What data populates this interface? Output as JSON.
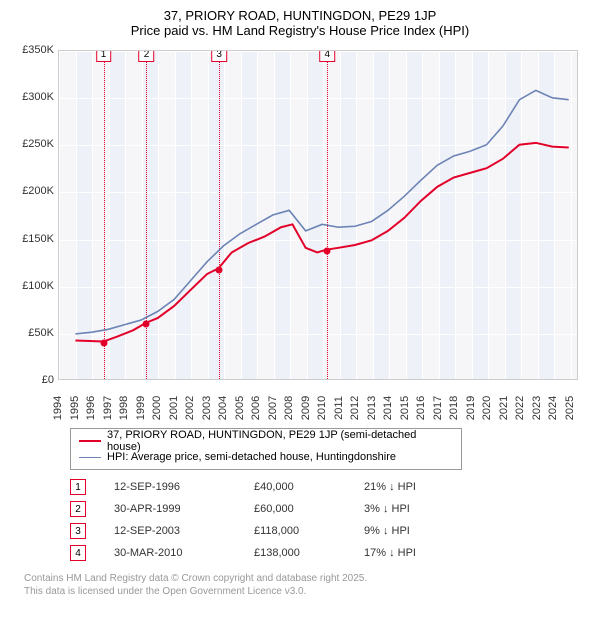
{
  "title": "37, PRIORY ROAD, HUNTINGDON, PE29 1JP",
  "subtitle": "Price paid vs. HM Land Registry's House Price Index (HPI)",
  "chart": {
    "type": "line",
    "x_min": 1994,
    "x_max": 2025.5,
    "y_min": 0,
    "y_max": 350000,
    "y_ticks": [
      0,
      50000,
      100000,
      150000,
      200000,
      250000,
      300000,
      350000
    ],
    "y_tick_labels": [
      "£0",
      "£50K",
      "£100K",
      "£150K",
      "£200K",
      "£250K",
      "£300K",
      "£350K"
    ],
    "x_ticks": [
      1994,
      1995,
      1996,
      1997,
      1998,
      1999,
      2000,
      2001,
      2002,
      2003,
      2004,
      2005,
      2006,
      2007,
      2008,
      2009,
      2010,
      2011,
      2012,
      2013,
      2014,
      2015,
      2016,
      2017,
      2018,
      2019,
      2020,
      2021,
      2022,
      2023,
      2024,
      2025
    ],
    "background_color": "#f6f6f8",
    "grid_color": "#ffffff",
    "band_color": "#eef1f7",
    "bands": [
      [
        1995,
        1996
      ],
      [
        1997,
        1998
      ],
      [
        1999,
        2000
      ],
      [
        2001,
        2002
      ],
      [
        2003,
        2004
      ],
      [
        2005,
        2006
      ],
      [
        2007,
        2008
      ],
      [
        2009,
        2010
      ],
      [
        2011,
        2012
      ],
      [
        2013,
        2014
      ],
      [
        2015,
        2016
      ],
      [
        2017,
        2018
      ],
      [
        2019,
        2020
      ],
      [
        2021,
        2022
      ],
      [
        2023,
        2024
      ]
    ],
    "series": [
      {
        "name": "price_paid",
        "color": "#e2002a",
        "width": 2,
        "points": [
          [
            1995.0,
            41000
          ],
          [
            1996.7,
            40000
          ],
          [
            1997.5,
            45000
          ],
          [
            1998.5,
            52000
          ],
          [
            1999.3,
            60000
          ],
          [
            2000.0,
            65000
          ],
          [
            2001.0,
            78000
          ],
          [
            2002.0,
            95000
          ],
          [
            2003.0,
            112000
          ],
          [
            2003.7,
            118000
          ],
          [
            2004.5,
            135000
          ],
          [
            2005.5,
            145000
          ],
          [
            2006.5,
            152000
          ],
          [
            2007.5,
            162000
          ],
          [
            2008.2,
            165000
          ],
          [
            2009.0,
            140000
          ],
          [
            2009.7,
            135000
          ],
          [
            2010.25,
            138000
          ],
          [
            2011.0,
            140000
          ],
          [
            2012.0,
            143000
          ],
          [
            2013.0,
            148000
          ],
          [
            2014.0,
            158000
          ],
          [
            2015.0,
            172000
          ],
          [
            2016.0,
            190000
          ],
          [
            2017.0,
            205000
          ],
          [
            2018.0,
            215000
          ],
          [
            2019.0,
            220000
          ],
          [
            2020.0,
            225000
          ],
          [
            2021.0,
            235000
          ],
          [
            2022.0,
            250000
          ],
          [
            2023.0,
            252000
          ],
          [
            2024.0,
            248000
          ],
          [
            2025.0,
            247000
          ]
        ],
        "markers": [
          [
            1996.7,
            40000
          ],
          [
            1999.3,
            60000
          ],
          [
            2003.7,
            118000
          ],
          [
            2010.25,
            138000
          ]
        ]
      },
      {
        "name": "hpi",
        "color": "#6c83b5",
        "width": 1.6,
        "points": [
          [
            1995.0,
            48000
          ],
          [
            1996.0,
            50000
          ],
          [
            1997.0,
            53000
          ],
          [
            1998.0,
            58000
          ],
          [
            1999.0,
            63000
          ],
          [
            2000.0,
            72000
          ],
          [
            2001.0,
            85000
          ],
          [
            2002.0,
            105000
          ],
          [
            2003.0,
            125000
          ],
          [
            2004.0,
            142000
          ],
          [
            2005.0,
            155000
          ],
          [
            2006.0,
            165000
          ],
          [
            2007.0,
            175000
          ],
          [
            2008.0,
            180000
          ],
          [
            2009.0,
            158000
          ],
          [
            2010.0,
            165000
          ],
          [
            2011.0,
            162000
          ],
          [
            2012.0,
            163000
          ],
          [
            2013.0,
            168000
          ],
          [
            2014.0,
            180000
          ],
          [
            2015.0,
            195000
          ],
          [
            2016.0,
            212000
          ],
          [
            2017.0,
            228000
          ],
          [
            2018.0,
            238000
          ],
          [
            2019.0,
            243000
          ],
          [
            2020.0,
            250000
          ],
          [
            2021.0,
            270000
          ],
          [
            2022.0,
            298000
          ],
          [
            2023.0,
            308000
          ],
          [
            2024.0,
            300000
          ],
          [
            2025.0,
            298000
          ]
        ]
      }
    ],
    "sale_markers": [
      {
        "n": "1",
        "x": 1996.7,
        "color": "#e2002a"
      },
      {
        "n": "2",
        "x": 1999.3,
        "color": "#e2002a"
      },
      {
        "n": "3",
        "x": 2003.7,
        "color": "#e2002a"
      },
      {
        "n": "4",
        "x": 2010.25,
        "color": "#e2002a"
      }
    ]
  },
  "legend": {
    "items": [
      {
        "label": "37, PRIORY ROAD, HUNTINGDON, PE29 1JP (semi-detached house)",
        "color": "#e2002a",
        "width": 2
      },
      {
        "label": "HPI: Average price, semi-detached house, Huntingdonshire",
        "color": "#6c83b5",
        "width": 1.6
      }
    ]
  },
  "sales": [
    {
      "n": "1",
      "date": "12-SEP-1996",
      "price": "£40,000",
      "pct": "21% ↓ HPI"
    },
    {
      "n": "2",
      "date": "30-APR-1999",
      "price": "£60,000",
      "pct": "3% ↓ HPI"
    },
    {
      "n": "3",
      "date": "12-SEP-2003",
      "price": "£118,000",
      "pct": "9% ↓ HPI"
    },
    {
      "n": "4",
      "date": "30-MAR-2010",
      "price": "£138,000",
      "pct": "17% ↓ HPI"
    }
  ],
  "footnote1": "Contains HM Land Registry data © Crown copyright and database right 2025.",
  "footnote2": "This data is licensed under the Open Government Licence v3.0."
}
